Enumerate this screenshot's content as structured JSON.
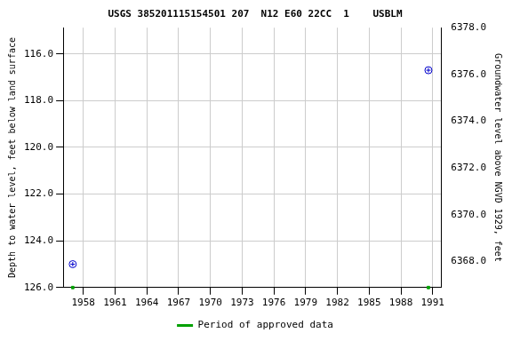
{
  "chart_data": {
    "type": "scatter",
    "title": "USGS 385201115154501 207  N12 E60 22CC  1    USBLM",
    "y_label": "Depth to water level, feet below land surface",
    "y2_label": "Groundwater level above NGVD 1929, feet",
    "x": [
      1957.0,
      1990.6
    ],
    "series": [
      {
        "values": [
          125.0,
          116.7
        ],
        "color": "#0000cc",
        "marker": "circle"
      },
      {
        "name": "Period of approved data",
        "values": [
          126.0,
          126.0
        ],
        "color": "#00a000",
        "marker": "square"
      }
    ],
    "xlim": [
      1956.1,
      1991.8
    ],
    "xticks": [
      1958,
      1961,
      1964,
      1967,
      1970,
      1973,
      1976,
      1979,
      1982,
      1985,
      1988,
      1991
    ],
    "ylim": [
      114.88,
      126.0
    ],
    "yticks": [
      {
        "value": 116,
        "label": "116.0"
      },
      {
        "value": 118,
        "label": "118.0"
      },
      {
        "value": 120,
        "label": "120.0"
      },
      {
        "value": 122,
        "label": "122.0"
      },
      {
        "value": 124,
        "label": "124.0"
      },
      {
        "value": 126,
        "label": "126.0"
      }
    ],
    "y2lim": [
      6366.88,
      6378.0
    ],
    "y2ticks": [
      {
        "value": 6368,
        "label": "6368.0"
      },
      {
        "value": 6370,
        "label": "6370.0"
      },
      {
        "value": 6372,
        "label": "6372.0"
      },
      {
        "value": 6374,
        "label": "6374.0"
      },
      {
        "value": 6376,
        "label": "6376.0"
      },
      {
        "value": 6378,
        "label": "6378.0"
      }
    ],
    "grid": true,
    "legend": "bottom"
  }
}
